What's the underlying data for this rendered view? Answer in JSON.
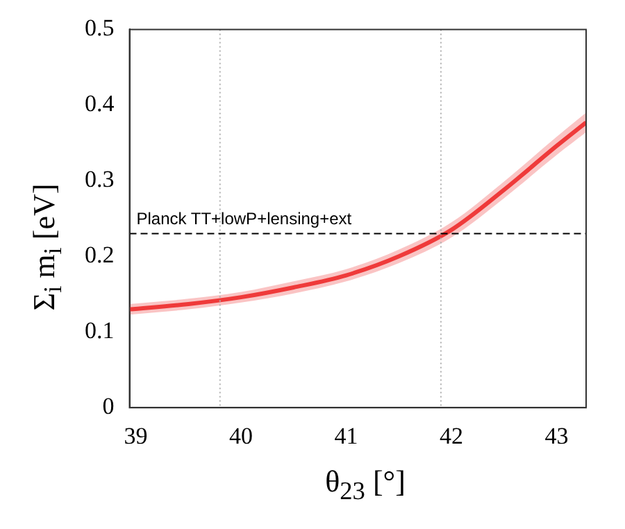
{
  "chart_data": {
    "type": "line",
    "xlabel": "θ$_{23}$  [°]",
    "ylabel": "Σ$_{i}$ m$_{i}$  [eV]",
    "xlim": [
      38.94,
      43.28
    ],
    "xticks": [
      39,
      40,
      41,
      42,
      43
    ],
    "ylim": [
      0,
      0.5
    ],
    "yticks": [
      0,
      0.1,
      0.2,
      0.3,
      0.4,
      0.5
    ],
    "grid": false,
    "legend": false,
    "marker": "none",
    "line_style": "solid",
    "series": [
      {
        "color": "#f03a3a",
        "x": [
          38.94,
          39.5,
          40,
          40.5,
          41,
          41.5,
          42,
          42.5,
          43,
          43.28
        ],
        "values": [
          0.13,
          0.137,
          0.146,
          0.159,
          0.175,
          0.2,
          0.235,
          0.288,
          0.346,
          0.377
        ],
        "lower": [
          0.123,
          0.13,
          0.139,
          0.151,
          0.167,
          0.191,
          0.225,
          0.277,
          0.334,
          0.364
        ],
        "upper": [
          0.137,
          0.144,
          0.153,
          0.167,
          0.183,
          0.209,
          0.245,
          0.299,
          0.358,
          0.39
        ]
      }
    ],
    "ref_lines": [
      {
        "axis": "x",
        "value": 39.8,
        "color": "#b0b0b0",
        "line_style": "dotted"
      },
      {
        "axis": "x",
        "value": 41.9,
        "color": "#b0b0b0",
        "line_style": "dotted"
      },
      {
        "axis": "y",
        "value": 0.23,
        "label": "Planck TT+lowP+lensing+ext",
        "color": "#000000",
        "line_style": "dashed"
      }
    ]
  }
}
